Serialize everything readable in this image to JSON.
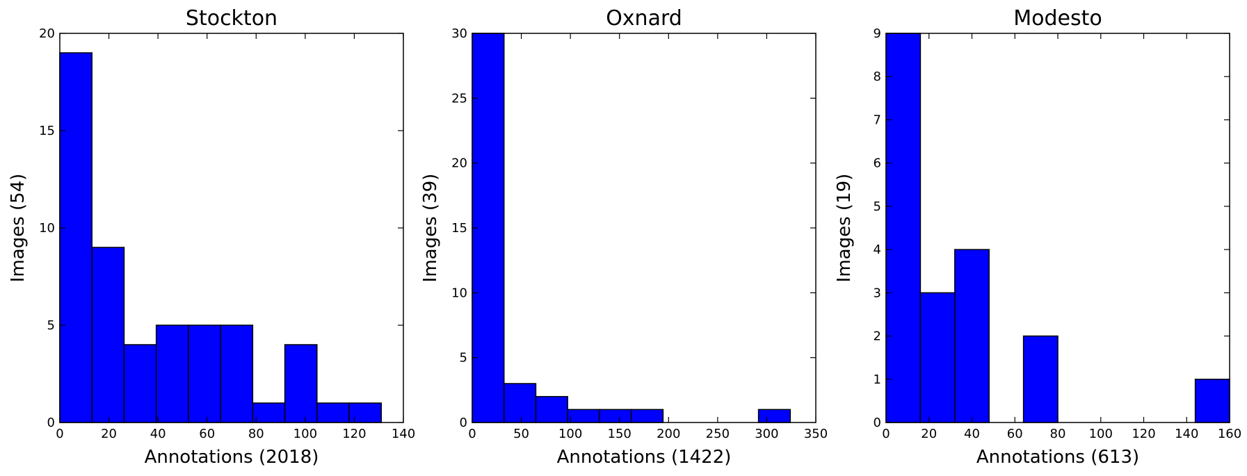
{
  "chart_data": [
    {
      "type": "bar",
      "title": "Stockton",
      "xlabel": "Annotations (2018)",
      "ylabel": "Images (54)",
      "xlim": [
        0,
        140
      ],
      "ylim": [
        0,
        20
      ],
      "xticks": [
        0,
        20,
        40,
        60,
        80,
        100,
        120,
        140
      ],
      "yticks": [
        0,
        5,
        10,
        15,
        20
      ],
      "bins": [
        {
          "x0": 0,
          "x1": 13.1,
          "count": 19
        },
        {
          "x0": 13.1,
          "x1": 26.2,
          "count": 9
        },
        {
          "x0": 26.2,
          "x1": 39.3,
          "count": 4
        },
        {
          "x0": 39.3,
          "x1": 52.4,
          "count": 5
        },
        {
          "x0": 52.4,
          "x1": 65.5,
          "count": 5
        },
        {
          "x0": 65.5,
          "x1": 78.6,
          "count": 5
        },
        {
          "x0": 78.6,
          "x1": 91.7,
          "count": 1
        },
        {
          "x0": 91.7,
          "x1": 104.8,
          "count": 4
        },
        {
          "x0": 104.8,
          "x1": 117.9,
          "count": 1
        },
        {
          "x0": 117.9,
          "x1": 131,
          "count": 1
        }
      ],
      "bar_color": "#0000ff"
    },
    {
      "type": "bar",
      "title": "Oxnard",
      "xlabel": "Annotations (1422)",
      "ylabel": "Images (39)",
      "xlim": [
        0,
        350
      ],
      "ylim": [
        0,
        30
      ],
      "xticks": [
        0,
        50,
        100,
        150,
        200,
        250,
        300,
        350
      ],
      "yticks": [
        0,
        5,
        10,
        15,
        20,
        25,
        30
      ],
      "bins": [
        {
          "x0": 0,
          "x1": 32.4,
          "count": 30
        },
        {
          "x0": 32.4,
          "x1": 64.8,
          "count": 3
        },
        {
          "x0": 64.8,
          "x1": 97.2,
          "count": 2
        },
        {
          "x0": 97.2,
          "x1": 129.6,
          "count": 1
        },
        {
          "x0": 129.6,
          "x1": 162,
          "count": 1
        },
        {
          "x0": 162,
          "x1": 194.4,
          "count": 1
        },
        {
          "x0": 194.4,
          "x1": 226.8,
          "count": 0
        },
        {
          "x0": 226.8,
          "x1": 259.2,
          "count": 0
        },
        {
          "x0": 259.2,
          "x1": 291.6,
          "count": 0
        },
        {
          "x0": 291.6,
          "x1": 324,
          "count": 1
        }
      ],
      "bar_color": "#0000ff"
    },
    {
      "type": "bar",
      "title": "Modesto",
      "xlabel": "Annotations (613)",
      "ylabel": "Images (19)",
      "xlim": [
        0,
        160
      ],
      "ylim": [
        0,
        9
      ],
      "xticks": [
        0,
        20,
        40,
        60,
        80,
        100,
        120,
        140,
        160
      ],
      "yticks": [
        0,
        1,
        2,
        3,
        4,
        5,
        6,
        7,
        8,
        9
      ],
      "bins": [
        {
          "x0": 0,
          "x1": 16,
          "count": 9
        },
        {
          "x0": 16,
          "x1": 32,
          "count": 3
        },
        {
          "x0": 32,
          "x1": 48,
          "count": 4
        },
        {
          "x0": 48,
          "x1": 64,
          "count": 0
        },
        {
          "x0": 64,
          "x1": 80,
          "count": 2
        },
        {
          "x0": 80,
          "x1": 96,
          "count": 0
        },
        {
          "x0": 96,
          "x1": 112,
          "count": 0
        },
        {
          "x0": 112,
          "x1": 128,
          "count": 0
        },
        {
          "x0": 128,
          "x1": 144,
          "count": 0
        },
        {
          "x0": 144,
          "x1": 160,
          "count": 1
        }
      ],
      "bar_color": "#0000ff"
    }
  ]
}
